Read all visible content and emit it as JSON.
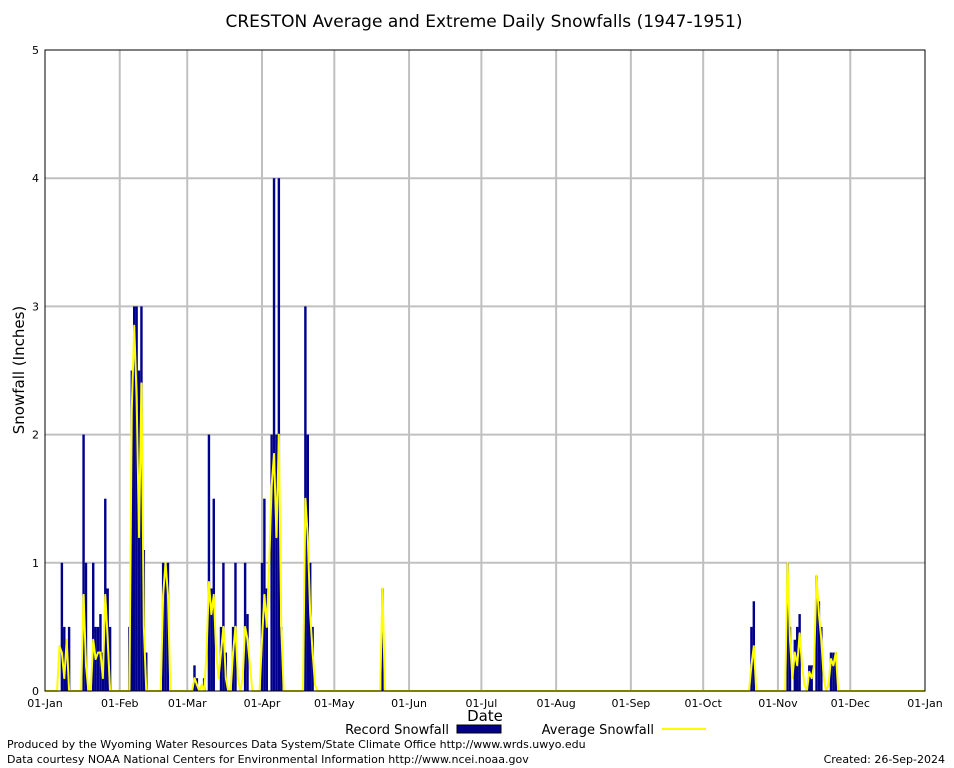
{
  "chart_data": {
    "type": "bar",
    "title": "CRESTON Average and Extreme Daily Snowfalls (1947-1951)",
    "xlabel": "Date",
    "ylabel": "Snowfall (Inches)",
    "ylim": [
      0,
      5
    ],
    "yticks": [
      "0",
      "1",
      "2",
      "3",
      "4",
      "5"
    ],
    "xlim_days": [
      1,
      366
    ],
    "xticks": [
      {
        "label": "01-Jan",
        "day": 1
      },
      {
        "label": "01-Feb",
        "day": 32
      },
      {
        "label": "01-Mar",
        "day": 60
      },
      {
        "label": "01-Apr",
        "day": 91
      },
      {
        "label": "01-May",
        "day": 121
      },
      {
        "label": "01-Jun",
        "day": 152
      },
      {
        "label": "01-Jul",
        "day": 182
      },
      {
        "label": "01-Aug",
        "day": 213
      },
      {
        "label": "01-Sep",
        "day": 244
      },
      {
        "label": "01-Oct",
        "day": 274
      },
      {
        "label": "01-Nov",
        "day": 305
      },
      {
        "label": "01-Dec",
        "day": 335
      },
      {
        "label": "01-Jan",
        "day": 366
      }
    ],
    "grid": true,
    "series": [
      {
        "name": "Record Snowfall",
        "style": "bar",
        "color": "#00008b",
        "points": [
          {
            "x": "08-Jan",
            "y": 1.0
          },
          {
            "x": "09-Jan",
            "y": 0.5
          },
          {
            "x": "10-Jan",
            "y": 0.3
          },
          {
            "x": "11-Jan",
            "y": 0.5
          },
          {
            "x": "17-Jan",
            "y": 2.0
          },
          {
            "x": "18-Jan",
            "y": 1.0
          },
          {
            "x": "21-Jan",
            "y": 1.0
          },
          {
            "x": "22-Jan",
            "y": 0.5
          },
          {
            "x": "23-Jan",
            "y": 0.5
          },
          {
            "x": "24-Jan",
            "y": 0.6
          },
          {
            "x": "25-Jan",
            "y": 0.3
          },
          {
            "x": "26-Jan",
            "y": 1.5
          },
          {
            "x": "27-Jan",
            "y": 0.8
          },
          {
            "x": "28-Jan",
            "y": 0.5
          },
          {
            "x": "05-Feb",
            "y": 0.5
          },
          {
            "x": "06-Feb",
            "y": 2.5
          },
          {
            "x": "07-Feb",
            "y": 3.0
          },
          {
            "x": "08-Feb",
            "y": 3.0
          },
          {
            "x": "09-Feb",
            "y": 2.5
          },
          {
            "x": "10-Feb",
            "y": 3.0
          },
          {
            "x": "11-Feb",
            "y": 1.1
          },
          {
            "x": "12-Feb",
            "y": 0.3
          },
          {
            "x": "19-Feb",
            "y": 1.0
          },
          {
            "x": "20-Feb",
            "y": 1.0
          },
          {
            "x": "21-Feb",
            "y": 1.0
          },
          {
            "x": "04-Mar",
            "y": 0.2
          },
          {
            "x": "05-Mar",
            "y": 0.1
          },
          {
            "x": "08-Mar",
            "y": 0.1
          },
          {
            "x": "10-Mar",
            "y": 2.0
          },
          {
            "x": "11-Mar",
            "y": 0.8
          },
          {
            "x": "12-Mar",
            "y": 1.5
          },
          {
            "x": "15-Mar",
            "y": 0.5
          },
          {
            "x": "16-Mar",
            "y": 1.0
          },
          {
            "x": "17-Mar",
            "y": 0.3
          },
          {
            "x": "20-Mar",
            "y": 0.5
          },
          {
            "x": "21-Mar",
            "y": 1.0
          },
          {
            "x": "25-Mar",
            "y": 1.0
          },
          {
            "x": "26-Mar",
            "y": 0.6
          },
          {
            "x": "01-Apr",
            "y": 1.0
          },
          {
            "x": "02-Apr",
            "y": 1.5
          },
          {
            "x": "03-Apr",
            "y": 0.8
          },
          {
            "x": "05-Apr",
            "y": 2.0
          },
          {
            "x": "06-Apr",
            "y": 4.0
          },
          {
            "x": "07-Apr",
            "y": 2.0
          },
          {
            "x": "08-Apr",
            "y": 4.0
          },
          {
            "x": "09-Apr",
            "y": 0.5
          },
          {
            "x": "19-Apr",
            "y": 3.0
          },
          {
            "x": "20-Apr",
            "y": 2.0
          },
          {
            "x": "21-Apr",
            "y": 1.0
          },
          {
            "x": "22-Apr",
            "y": 0.5
          },
          {
            "x": "21-May",
            "y": 0.8
          },
          {
            "x": "21-Oct",
            "y": 0.5
          },
          {
            "x": "22-Oct",
            "y": 0.7
          },
          {
            "x": "05-Nov",
            "y": 1.0
          },
          {
            "x": "06-Nov",
            "y": 0.5
          },
          {
            "x": "08-Nov",
            "y": 0.4
          },
          {
            "x": "09-Nov",
            "y": 0.5
          },
          {
            "x": "10-Nov",
            "y": 0.6
          },
          {
            "x": "14-Nov",
            "y": 0.2
          },
          {
            "x": "15-Nov",
            "y": 0.2
          },
          {
            "x": "17-Nov",
            "y": 0.9
          },
          {
            "x": "18-Nov",
            "y": 0.7
          },
          {
            "x": "19-Nov",
            "y": 0.5
          },
          {
            "x": "23-Nov",
            "y": 0.3
          },
          {
            "x": "24-Nov",
            "y": 0.3
          },
          {
            "x": "25-Nov",
            "y": 0.3
          }
        ]
      },
      {
        "name": "Average Snowfall",
        "style": "line",
        "color": "#ffff00",
        "points": [
          {
            "x": "06-Jan",
            "y": 0.0
          },
          {
            "x": "07-Jan",
            "y": 0.35
          },
          {
            "x": "08-Jan",
            "y": 0.3
          },
          {
            "x": "09-Jan",
            "y": 0.1
          },
          {
            "x": "10-Jan",
            "y": 0.4
          },
          {
            "x": "11-Jan",
            "y": 0.0
          },
          {
            "x": "16-Jan",
            "y": 0.0
          },
          {
            "x": "17-Jan",
            "y": 0.75
          },
          {
            "x": "18-Jan",
            "y": 0.2
          },
          {
            "x": "19-Jan",
            "y": 0.0
          },
          {
            "x": "21-Jan",
            "y": 0.4
          },
          {
            "x": "22-Jan",
            "y": 0.25
          },
          {
            "x": "23-Jan",
            "y": 0.3
          },
          {
            "x": "24-Jan",
            "y": 0.3
          },
          {
            "x": "25-Jan",
            "y": 0.1
          },
          {
            "x": "26-Jan",
            "y": 0.75
          },
          {
            "x": "27-Jan",
            "y": 0.4
          },
          {
            "x": "28-Jan",
            "y": 0.0
          },
          {
            "x": "05-Feb",
            "y": 0.0
          },
          {
            "x": "06-Feb",
            "y": 2.2
          },
          {
            "x": "07-Feb",
            "y": 2.85
          },
          {
            "x": "08-Feb",
            "y": 2.3
          },
          {
            "x": "09-Feb",
            "y": 1.2
          },
          {
            "x": "10-Feb",
            "y": 2.4
          },
          {
            "x": "11-Feb",
            "y": 0.5
          },
          {
            "x": "12-Feb",
            "y": 0.0
          },
          {
            "x": "18-Feb",
            "y": 0.0
          },
          {
            "x": "19-Feb",
            "y": 0.75
          },
          {
            "x": "20-Feb",
            "y": 1.0
          },
          {
            "x": "21-Feb",
            "y": 0.75
          },
          {
            "x": "22-Feb",
            "y": 0.0
          },
          {
            "x": "03-Mar",
            "y": 0.0
          },
          {
            "x": "04-Mar",
            "y": 0.1
          },
          {
            "x": "05-Mar",
            "y": 0.05
          },
          {
            "x": "07-Mar",
            "y": 0.05
          },
          {
            "x": "08-Mar",
            "y": 0.0
          },
          {
            "x": "09-Mar",
            "y": 0.3
          },
          {
            "x": "10-Mar",
            "y": 0.85
          },
          {
            "x": "11-Mar",
            "y": 0.6
          },
          {
            "x": "12-Mar",
            "y": 0.75
          },
          {
            "x": "13-Mar",
            "y": 0.3
          },
          {
            "x": "14-Mar",
            "y": 0.1
          },
          {
            "x": "15-Mar",
            "y": 0.3
          },
          {
            "x": "16-Mar",
            "y": 0.5
          },
          {
            "x": "17-Mar",
            "y": 0.1
          },
          {
            "x": "18-Mar",
            "y": 0.0
          },
          {
            "x": "20-Mar",
            "y": 0.3
          },
          {
            "x": "21-Mar",
            "y": 0.5
          },
          {
            "x": "22-Mar",
            "y": 0.1
          },
          {
            "x": "24-Mar",
            "y": 0.1
          },
          {
            "x": "25-Mar",
            "y": 0.5
          },
          {
            "x": "26-Mar",
            "y": 0.4
          },
          {
            "x": "27-Mar",
            "y": 0.2
          },
          {
            "x": "28-Mar",
            "y": 0.0
          },
          {
            "x": "31-Mar",
            "y": 0.0
          },
          {
            "x": "01-Apr",
            "y": 0.4
          },
          {
            "x": "02-Apr",
            "y": 0.75
          },
          {
            "x": "03-Apr",
            "y": 0.5
          },
          {
            "x": "04-Apr",
            "y": 1.0
          },
          {
            "x": "05-Apr",
            "y": 1.6
          },
          {
            "x": "06-Apr",
            "y": 1.85
          },
          {
            "x": "07-Apr",
            "y": 1.2
          },
          {
            "x": "08-Apr",
            "y": 2.0
          },
          {
            "x": "09-Apr",
            "y": 0.5
          },
          {
            "x": "10-Apr",
            "y": 0.0
          },
          {
            "x": "18-Apr",
            "y": 0.0
          },
          {
            "x": "19-Apr",
            "y": 1.5
          },
          {
            "x": "20-Apr",
            "y": 1.2
          },
          {
            "x": "21-Apr",
            "y": 0.6
          },
          {
            "x": "22-Apr",
            "y": 0.3
          },
          {
            "x": "23-Apr",
            "y": 0.05
          },
          {
            "x": "24-Apr",
            "y": 0.0
          },
          {
            "x": "20-May",
            "y": 0.0
          },
          {
            "x": "21-May",
            "y": 0.8
          },
          {
            "x": "22-May",
            "y": 0.0
          },
          {
            "x": "20-Oct",
            "y": 0.0
          },
          {
            "x": "21-Oct",
            "y": 0.2
          },
          {
            "x": "22-Oct",
            "y": 0.35
          },
          {
            "x": "23-Oct",
            "y": 0.0
          },
          {
            "x": "04-Nov",
            "y": 0.0
          },
          {
            "x": "05-Nov",
            "y": 1.0
          },
          {
            "x": "06-Nov",
            "y": 0.4
          },
          {
            "x": "07-Nov",
            "y": 0.1
          },
          {
            "x": "08-Nov",
            "y": 0.3
          },
          {
            "x": "09-Nov",
            "y": 0.2
          },
          {
            "x": "10-Nov",
            "y": 0.45
          },
          {
            "x": "11-Nov",
            "y": 0.2
          },
          {
            "x": "12-Nov",
            "y": 0.05
          },
          {
            "x": "14-Nov",
            "y": 0.15
          },
          {
            "x": "15-Nov",
            "y": 0.1
          },
          {
            "x": "16-Nov",
            "y": 0.2
          },
          {
            "x": "17-Nov",
            "y": 0.9
          },
          {
            "x": "18-Nov",
            "y": 0.6
          },
          {
            "x": "19-Nov",
            "y": 0.4
          },
          {
            "x": "20-Nov",
            "y": 0.1
          },
          {
            "x": "22-Nov",
            "y": 0.05
          },
          {
            "x": "23-Nov",
            "y": 0.25
          },
          {
            "x": "24-Nov",
            "y": 0.2
          },
          {
            "x": "25-Nov",
            "y": 0.3
          },
          {
            "x": "26-Nov",
            "y": 0.0
          }
        ]
      }
    ],
    "legend": {
      "placement": "bottom",
      "items": [
        "Record Snowfall",
        "Average Snowfall"
      ]
    }
  },
  "footer": {
    "produced_by": "Produced by the Wyoming Water Resources Data System/State Climate Office http://www.wrds.uwyo.edu",
    "courtesy": "Data courtesy NOAA National Centers for Environmental Information http://www.ncei.noaa.gov",
    "created": "Created: 26-Sep-2024"
  }
}
